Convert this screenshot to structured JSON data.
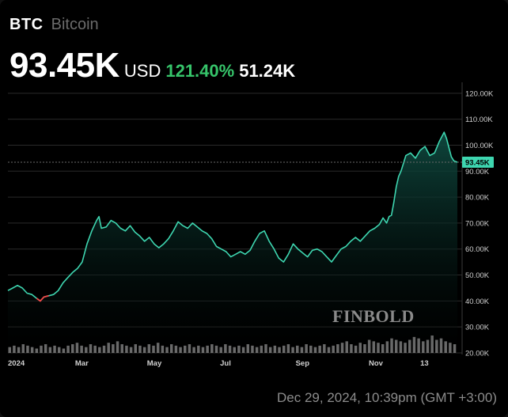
{
  "header": {
    "ticker": "BTC",
    "name": "Bitcoin",
    "price": "93.45K",
    "currency": "USD",
    "change_pct": "121.40%",
    "change_value": "51.24K"
  },
  "footer": {
    "timestamp": "Dec 29, 2024, 10:39pm (GMT +3:00)"
  },
  "watermark": "FINBOLD",
  "colors": {
    "line_up": "#3ed6b0",
    "line_down": "#f04848",
    "area_top": "#0f4a40",
    "grid": "#2a2a2a",
    "last_price_tag": "#3ed6b0",
    "volume": "#b4b4b4",
    "positive_change": "#36c46a"
  },
  "chart_data": {
    "type": "line",
    "y_unit": "USD",
    "ylim": [
      20000,
      123000
    ],
    "y_ticks": [
      "120.00K",
      "110.00K",
      "100.00K",
      "90.00K",
      "80.00K",
      "70.00K",
      "60.00K",
      "50.00K",
      "40.00K",
      "30.00K",
      "20.00K"
    ],
    "y_tick_values": [
      120000,
      110000,
      100000,
      90000,
      80000,
      70000,
      60000,
      50000,
      40000,
      30000,
      20000
    ],
    "x_ticks": [
      "2024",
      "Mar",
      "May",
      "Jul",
      "Sep",
      "Nov",
      "13"
    ],
    "x_tick_positions": [
      0,
      60,
      120,
      181,
      244,
      305,
      348
    ],
    "last_price_label": "93.45K",
    "last_price": 93450,
    "grid": "horizontal",
    "series": [
      {
        "values": [
          [
            0,
            44000
          ],
          [
            4,
            45000
          ],
          [
            8,
            46000
          ],
          [
            12,
            45000
          ],
          [
            16,
            43000
          ],
          [
            20,
            42500
          ],
          [
            24,
            41000
          ],
          [
            27,
            40000
          ],
          [
            30,
            41500
          ],
          [
            34,
            42000
          ],
          [
            38,
            42500
          ],
          [
            42,
            44000
          ],
          [
            46,
            47000
          ],
          [
            50,
            49000
          ],
          [
            54,
            51000
          ],
          [
            58,
            52500
          ],
          [
            62,
            55000
          ],
          [
            66,
            62000
          ],
          [
            70,
            67000
          ],
          [
            74,
            71000
          ],
          [
            76,
            72500
          ],
          [
            78,
            68000
          ],
          [
            82,
            68500
          ],
          [
            86,
            71000
          ],
          [
            90,
            70000
          ],
          [
            94,
            68000
          ],
          [
            98,
            67000
          ],
          [
            102,
            69000
          ],
          [
            106,
            66500
          ],
          [
            110,
            65000
          ],
          [
            114,
            63000
          ],
          [
            118,
            64500
          ],
          [
            122,
            62000
          ],
          [
            126,
            60500
          ],
          [
            130,
            62000
          ],
          [
            134,
            64000
          ],
          [
            138,
            67000
          ],
          [
            142,
            70500
          ],
          [
            146,
            69000
          ],
          [
            150,
            68000
          ],
          [
            154,
            70000
          ],
          [
            158,
            68500
          ],
          [
            162,
            67000
          ],
          [
            166,
            66000
          ],
          [
            170,
            64000
          ],
          [
            174,
            61000
          ],
          [
            178,
            60000
          ],
          [
            182,
            59000
          ],
          [
            186,
            57000
          ],
          [
            190,
            58000
          ],
          [
            194,
            59000
          ],
          [
            198,
            58000
          ],
          [
            202,
            59500
          ],
          [
            206,
            63000
          ],
          [
            210,
            66000
          ],
          [
            214,
            67000
          ],
          [
            218,
            63000
          ],
          [
            222,
            60000
          ],
          [
            226,
            56500
          ],
          [
            230,
            55000
          ],
          [
            234,
            58000
          ],
          [
            238,
            62000
          ],
          [
            242,
            60000
          ],
          [
            246,
            58500
          ],
          [
            250,
            57000
          ],
          [
            254,
            59500
          ],
          [
            258,
            60000
          ],
          [
            262,
            59000
          ],
          [
            266,
            57000
          ],
          [
            270,
            55000
          ],
          [
            274,
            57500
          ],
          [
            278,
            60000
          ],
          [
            282,
            61000
          ],
          [
            286,
            63000
          ],
          [
            290,
            64500
          ],
          [
            294,
            63000
          ],
          [
            298,
            65000
          ],
          [
            302,
            67000
          ],
          [
            306,
            68000
          ],
          [
            310,
            69500
          ],
          [
            313,
            72000
          ],
          [
            316,
            70000
          ],
          [
            318,
            72500
          ],
          [
            320,
            73000
          ],
          [
            322,
            78000
          ],
          [
            324,
            84000
          ],
          [
            326,
            88000
          ],
          [
            328,
            90000
          ],
          [
            332,
            96000
          ],
          [
            336,
            97000
          ],
          [
            340,
            95000
          ],
          [
            344,
            98000
          ],
          [
            348,
            99500
          ],
          [
            352,
            96000
          ],
          [
            356,
            97000
          ],
          [
            360,
            101500
          ],
          [
            364,
            105000
          ],
          [
            366,
            102500
          ],
          [
            368,
            99000
          ],
          [
            370,
            95500
          ],
          [
            372,
            94000
          ],
          [
            375,
            93450
          ]
        ]
      }
    ],
    "volume": [
      4,
      5,
      4,
      6,
      5,
      4,
      3,
      5,
      6,
      4,
      5,
      4,
      3,
      5,
      6,
      7,
      5,
      4,
      6,
      5,
      4,
      5,
      7,
      6,
      8,
      6,
      5,
      4,
      6,
      5,
      4,
      6,
      5,
      7,
      5,
      4,
      6,
      5,
      4,
      5,
      6,
      4,
      5,
      4,
      5,
      6,
      5,
      4,
      6,
      5,
      4,
      5,
      4,
      6,
      5,
      4,
      5,
      6,
      4,
      5,
      4,
      5,
      6,
      4,
      5,
      4,
      6,
      5,
      4,
      5,
      6,
      4,
      5,
      6,
      7,
      8,
      6,
      5,
      7,
      6,
      9,
      8,
      7,
      6,
      8,
      10,
      9,
      8,
      7,
      9,
      11,
      10,
      8,
      9,
      12,
      9,
      10,
      8,
      7,
      6
    ]
  }
}
